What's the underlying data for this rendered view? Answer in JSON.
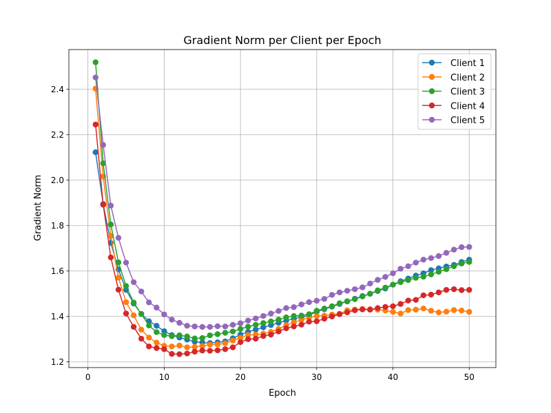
{
  "chart_data": {
    "type": "line",
    "title": "Gradient Norm per Client per Epoch",
    "xlabel": "Epoch",
    "ylabel": "Gradient Norm",
    "xlim": [
      -2.5,
      53.5
    ],
    "ylim": [
      1.175,
      2.575
    ],
    "xticks": [
      0,
      10,
      20,
      30,
      40,
      50
    ],
    "yticks": [
      1.2,
      1.4,
      1.6,
      1.8,
      2.0,
      2.2,
      2.4
    ],
    "xtick_labels": [
      "0",
      "10",
      "20",
      "30",
      "40",
      "50"
    ],
    "ytick_labels": [
      "1.2",
      "1.4",
      "1.6",
      "1.8",
      "2.0",
      "2.2",
      "2.4"
    ],
    "grid": true,
    "legend_position": "top-right",
    "x": [
      1,
      2,
      3,
      4,
      5,
      6,
      7,
      8,
      9,
      10,
      11,
      12,
      13,
      14,
      15,
      16,
      17,
      18,
      19,
      20,
      21,
      22,
      23,
      24,
      25,
      26,
      27,
      28,
      29,
      30,
      31,
      32,
      33,
      34,
      35,
      36,
      37,
      38,
      39,
      40,
      41,
      42,
      43,
      44,
      45,
      46,
      47,
      48,
      49,
      50
    ],
    "series": [
      {
        "name": "Client 1",
        "color": "#1f77b4",
        "values": [
          2.123,
          1.895,
          1.724,
          1.607,
          1.517,
          1.457,
          1.411,
          1.379,
          1.359,
          1.335,
          1.318,
          1.307,
          1.298,
          1.289,
          1.285,
          1.283,
          1.286,
          1.29,
          1.304,
          1.32,
          1.332,
          1.342,
          1.352,
          1.362,
          1.372,
          1.382,
          1.39,
          1.397,
          1.405,
          1.421,
          1.432,
          1.443,
          1.455,
          1.466,
          1.478,
          1.49,
          1.5,
          1.512,
          1.523,
          1.54,
          1.555,
          1.567,
          1.58,
          1.59,
          1.604,
          1.612,
          1.62,
          1.627,
          1.64,
          1.65
        ]
      },
      {
        "name": "Client 2",
        "color": "#ff7f0e",
        "values": [
          2.403,
          2.016,
          1.755,
          1.571,
          1.463,
          1.405,
          1.342,
          1.307,
          1.285,
          1.271,
          1.268,
          1.272,
          1.264,
          1.266,
          1.27,
          1.276,
          1.277,
          1.282,
          1.294,
          1.306,
          1.318,
          1.32,
          1.324,
          1.332,
          1.345,
          1.362,
          1.374,
          1.385,
          1.395,
          1.402,
          1.404,
          1.408,
          1.412,
          1.427,
          1.43,
          1.433,
          1.432,
          1.43,
          1.426,
          1.42,
          1.413,
          1.428,
          1.43,
          1.435,
          1.425,
          1.418,
          1.421,
          1.428,
          1.426,
          1.42
        ]
      },
      {
        "name": "Client 3",
        "color": "#2ca02c",
        "values": [
          2.519,
          2.074,
          1.805,
          1.638,
          1.534,
          1.461,
          1.411,
          1.36,
          1.331,
          1.318,
          1.313,
          1.317,
          1.312,
          1.303,
          1.305,
          1.317,
          1.322,
          1.328,
          1.334,
          1.345,
          1.355,
          1.363,
          1.371,
          1.378,
          1.386,
          1.396,
          1.402,
          1.404,
          1.41,
          1.425,
          1.435,
          1.445,
          1.458,
          1.467,
          1.476,
          1.488,
          1.5,
          1.515,
          1.527,
          1.54,
          1.551,
          1.56,
          1.57,
          1.575,
          1.585,
          1.597,
          1.608,
          1.621,
          1.633,
          1.64
        ]
      },
      {
        "name": "Client 4",
        "color": "#d62728",
        "values": [
          2.245,
          1.892,
          1.66,
          1.518,
          1.413,
          1.354,
          1.302,
          1.268,
          1.261,
          1.256,
          1.235,
          1.234,
          1.237,
          1.245,
          1.25,
          1.249,
          1.251,
          1.256,
          1.264,
          1.287,
          1.3,
          1.302,
          1.314,
          1.32,
          1.334,
          1.348,
          1.356,
          1.364,
          1.377,
          1.379,
          1.39,
          1.4,
          1.41,
          1.418,
          1.427,
          1.431,
          1.43,
          1.437,
          1.442,
          1.445,
          1.455,
          1.47,
          1.473,
          1.493,
          1.496,
          1.506,
          1.517,
          1.52,
          1.516,
          1.517
        ]
      },
      {
        "name": "Client 5",
        "color": "#9467bd",
        "values": [
          2.452,
          2.155,
          1.888,
          1.746,
          1.637,
          1.551,
          1.51,
          1.462,
          1.439,
          1.409,
          1.386,
          1.372,
          1.359,
          1.356,
          1.354,
          1.354,
          1.357,
          1.356,
          1.363,
          1.37,
          1.382,
          1.391,
          1.402,
          1.413,
          1.424,
          1.437,
          1.441,
          1.453,
          1.463,
          1.469,
          1.477,
          1.495,
          1.506,
          1.513,
          1.52,
          1.528,
          1.545,
          1.561,
          1.574,
          1.59,
          1.61,
          1.621,
          1.637,
          1.65,
          1.657,
          1.666,
          1.68,
          1.694,
          1.705,
          1.706
        ]
      }
    ]
  }
}
